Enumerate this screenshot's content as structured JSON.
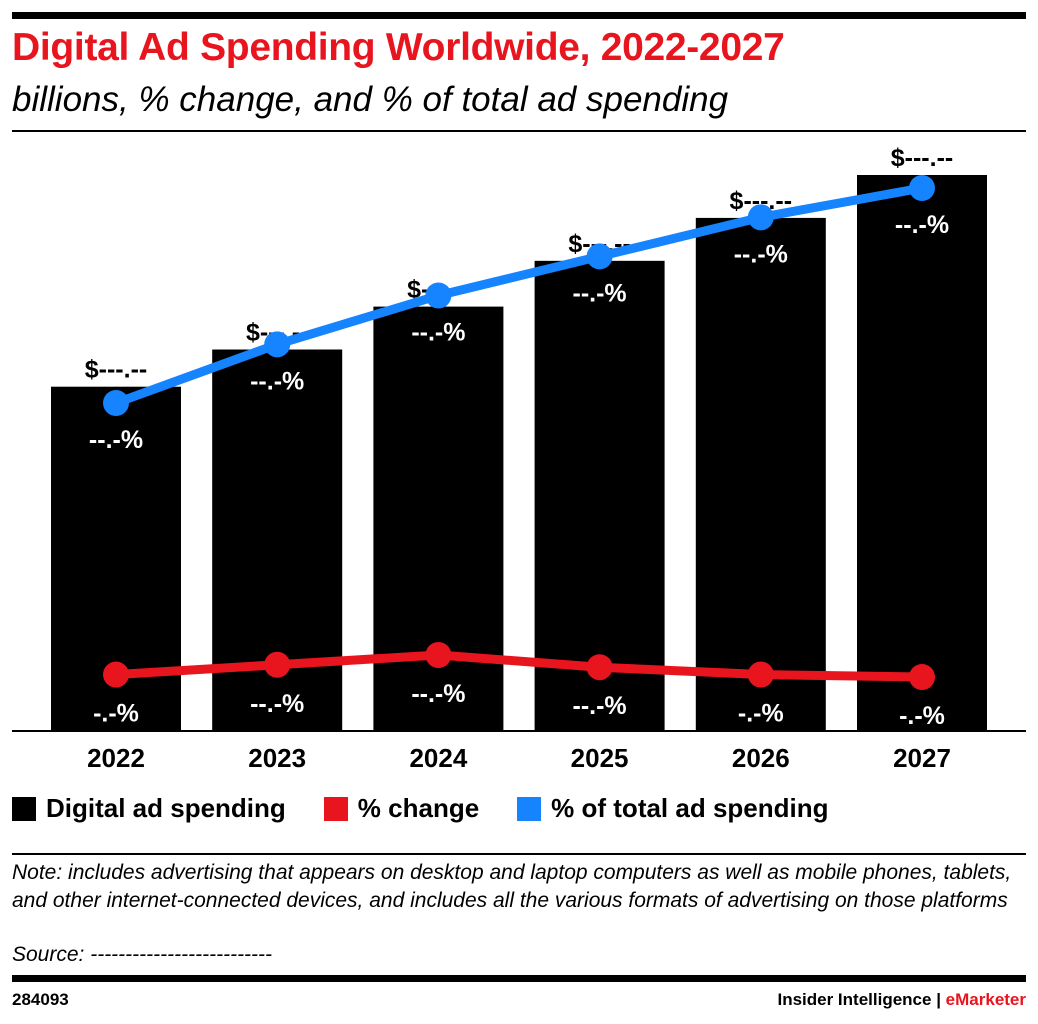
{
  "header": {
    "title": "Digital Ad Spending Worldwide, 2022-2027",
    "subtitle": "billions, % change, and % of total ad spending"
  },
  "legend": [
    {
      "label": "Digital ad spending",
      "color": "#000000"
    },
    {
      "label": "% change",
      "color": "#e8151f"
    },
    {
      "label": "% of total ad spending",
      "color": "#1683ff"
    }
  ],
  "chart_data": {
    "type": "bar",
    "categories": [
      "2022",
      "2023",
      "2024",
      "2025",
      "2026",
      "2027"
    ],
    "series": [
      {
        "name": "Digital ad spending",
        "type": "bar",
        "color": "#000000",
        "values": [
          600,
          665,
          740,
          820,
          895,
          970
        ],
        "labels": [
          "$---.--",
          "$---.--",
          "$---.--",
          "$---.--",
          "$---.--",
          "$---.--"
        ]
      },
      {
        "name": "% change",
        "type": "line",
        "color": "#e8151f",
        "values": [
          8.5,
          10.5,
          12.5,
          10.0,
          8.5,
          8.0
        ],
        "labels": [
          "-.-%",
          "--.-%",
          "--.-%",
          "--.-%",
          "-.-%",
          "-.-%"
        ]
      },
      {
        "name": "% of total ad spending",
        "type": "line",
        "color": "#1683ff",
        "values": [
          67,
          70,
          72.5,
          74.5,
          76.5,
          78
        ],
        "labels": [
          "--.-%",
          "--.-%",
          "--.-%",
          "--.-%",
          "--.-%",
          "--.-%"
        ]
      }
    ],
    "legend_position": "bottom-left",
    "grid": false
  },
  "footer": {
    "note": "Note: includes advertising that appears on desktop and laptop computers as well as mobile phones, tablets, and other internet-connected devices, and includes all the various formats of advertising on those platforms",
    "source": "Source: --------------------------",
    "chart_id": "284093",
    "brand_left": "Insider Intelligence",
    "brand_sep": " | ",
    "brand_right": "eMarketer"
  }
}
